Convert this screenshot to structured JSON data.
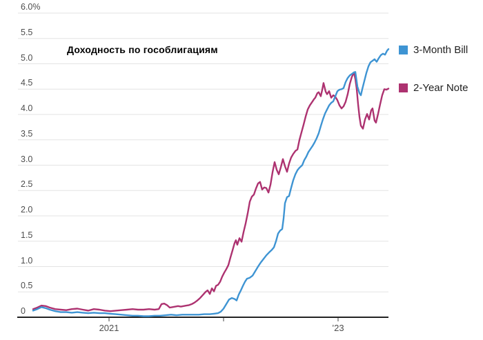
{
  "chart_data": {
    "type": "line",
    "title": "Доходность по гособлигациям",
    "grid": true,
    "legend_position": "right",
    "colors": {
      "background": "#ffffff",
      "grid": "#e3e3e3",
      "axis": "#222222",
      "tick": "#444444",
      "axis_label": "#4d4d4d",
      "legend_text": "#222222",
      "title": "#000000"
    },
    "y_axis": {
      "min": 0,
      "max": 6.0,
      "tick_step": 0.5,
      "ticks": [
        {
          "v": 6.0,
          "label": "6.0%"
        },
        {
          "v": 5.5,
          "label": "5.5"
        },
        {
          "v": 5.0,
          "label": "5.0"
        },
        {
          "v": 4.5,
          "label": "4.5"
        },
        {
          "v": 4.0,
          "label": "4.0"
        },
        {
          "v": 3.5,
          "label": "3.5"
        },
        {
          "v": 3.0,
          "label": "3.0"
        },
        {
          "v": 2.5,
          "label": "2.5"
        },
        {
          "v": 2.0,
          "label": "2.0"
        },
        {
          "v": 1.5,
          "label": "1.5"
        },
        {
          "v": 1.0,
          "label": "1.0"
        },
        {
          "v": 0.5,
          "label": "0.5"
        },
        {
          "v": 0,
          "label": "0"
        }
      ]
    },
    "x_axis": {
      "min": 2020.337,
      "max": 2023.44,
      "ticks": [
        {
          "t": 2021,
          "label": "2021"
        },
        {
          "t": 2022,
          "label": ""
        },
        {
          "t": 2023,
          "label": "’23"
        }
      ]
    },
    "series": [
      {
        "name": "3-Month Bill",
        "color": "#3e94d3",
        "points": [
          [
            2020.337,
            0.13
          ],
          [
            2020.373,
            0.16
          ],
          [
            2020.41,
            0.2
          ],
          [
            2020.446,
            0.18
          ],
          [
            2020.482,
            0.15
          ],
          [
            2020.53,
            0.12
          ],
          [
            2020.578,
            0.1
          ],
          [
            2020.627,
            0.1
          ],
          [
            2020.675,
            0.09
          ],
          [
            2020.723,
            0.1
          ],
          [
            2020.771,
            0.09
          ],
          [
            2020.819,
            0.08
          ],
          [
            2020.867,
            0.09
          ],
          [
            2020.916,
            0.08
          ],
          [
            2020.964,
            0.08
          ],
          [
            2021.012,
            0.07
          ],
          [
            2021.06,
            0.06
          ],
          [
            2021.108,
            0.05
          ],
          [
            2021.157,
            0.04
          ],
          [
            2021.205,
            0.03
          ],
          [
            2021.253,
            0.03
          ],
          [
            2021.301,
            0.02
          ],
          [
            2021.349,
            0.02
          ],
          [
            2021.398,
            0.03
          ],
          [
            2021.446,
            0.03
          ],
          [
            2021.494,
            0.04
          ],
          [
            2021.542,
            0.05
          ],
          [
            2021.59,
            0.04
          ],
          [
            2021.639,
            0.05
          ],
          [
            2021.687,
            0.05
          ],
          [
            2021.735,
            0.05
          ],
          [
            2021.783,
            0.05
          ],
          [
            2021.831,
            0.06
          ],
          [
            2021.88,
            0.06
          ],
          [
            2021.916,
            0.07
          ],
          [
            2021.952,
            0.08
          ],
          [
            2021.976,
            0.11
          ],
          [
            2022.0,
            0.17
          ],
          [
            2022.024,
            0.26
          ],
          [
            2022.048,
            0.35
          ],
          [
            2022.072,
            0.38
          ],
          [
            2022.096,
            0.36
          ],
          [
            2022.114,
            0.33
          ],
          [
            2022.133,
            0.45
          ],
          [
            2022.151,
            0.53
          ],
          [
            2022.169,
            0.62
          ],
          [
            2022.187,
            0.7
          ],
          [
            2022.205,
            0.76
          ],
          [
            2022.229,
            0.78
          ],
          [
            2022.253,
            0.82
          ],
          [
            2022.277,
            0.91
          ],
          [
            2022.301,
            1.0
          ],
          [
            2022.325,
            1.08
          ],
          [
            2022.349,
            1.15
          ],
          [
            2022.373,
            1.22
          ],
          [
            2022.398,
            1.28
          ],
          [
            2022.422,
            1.33
          ],
          [
            2022.44,
            1.38
          ],
          [
            2022.458,
            1.5
          ],
          [
            2022.476,
            1.65
          ],
          [
            2022.494,
            1.71
          ],
          [
            2022.512,
            1.74
          ],
          [
            2022.524,
            1.95
          ],
          [
            2022.536,
            2.25
          ],
          [
            2022.554,
            2.37
          ],
          [
            2022.572,
            2.39
          ],
          [
            2022.59,
            2.55
          ],
          [
            2022.608,
            2.7
          ],
          [
            2022.627,
            2.82
          ],
          [
            2022.645,
            2.9
          ],
          [
            2022.663,
            2.95
          ],
          [
            2022.687,
            3.0
          ],
          [
            2022.705,
            3.1
          ],
          [
            2022.723,
            3.17
          ],
          [
            2022.741,
            3.26
          ],
          [
            2022.759,
            3.32
          ],
          [
            2022.777,
            3.38
          ],
          [
            2022.795,
            3.45
          ],
          [
            2022.813,
            3.53
          ],
          [
            2022.831,
            3.63
          ],
          [
            2022.849,
            3.77
          ],
          [
            2022.867,
            3.9
          ],
          [
            2022.886,
            4.02
          ],
          [
            2022.904,
            4.1
          ],
          [
            2022.922,
            4.18
          ],
          [
            2022.94,
            4.23
          ],
          [
            2022.958,
            4.26
          ],
          [
            2022.976,
            4.36
          ],
          [
            2022.994,
            4.46
          ],
          [
            2023.012,
            4.49
          ],
          [
            2023.03,
            4.5
          ],
          [
            2023.048,
            4.52
          ],
          [
            2023.066,
            4.64
          ],
          [
            2023.084,
            4.72
          ],
          [
            2023.102,
            4.77
          ],
          [
            2023.12,
            4.8
          ],
          [
            2023.139,
            4.83
          ],
          [
            2023.151,
            4.84
          ],
          [
            2023.169,
            4.55
          ],
          [
            2023.187,
            4.42
          ],
          [
            2023.199,
            4.38
          ],
          [
            2023.211,
            4.5
          ],
          [
            2023.229,
            4.66
          ],
          [
            2023.247,
            4.82
          ],
          [
            2023.265,
            4.95
          ],
          [
            2023.283,
            5.03
          ],
          [
            2023.301,
            5.06
          ],
          [
            2023.319,
            5.09
          ],
          [
            2023.337,
            5.04
          ],
          [
            2023.355,
            5.11
          ],
          [
            2023.373,
            5.17
          ],
          [
            2023.392,
            5.2
          ],
          [
            2023.41,
            5.18
          ],
          [
            2023.428,
            5.26
          ],
          [
            2023.44,
            5.29
          ]
        ]
      },
      {
        "name": "2-Year Note",
        "color": "#ad3270",
        "points": [
          [
            2020.337,
            0.16
          ],
          [
            2020.373,
            0.19
          ],
          [
            2020.41,
            0.23
          ],
          [
            2020.446,
            0.22
          ],
          [
            2020.482,
            0.19
          ],
          [
            2020.53,
            0.16
          ],
          [
            2020.578,
            0.15
          ],
          [
            2020.627,
            0.14
          ],
          [
            2020.675,
            0.16
          ],
          [
            2020.723,
            0.17
          ],
          [
            2020.771,
            0.15
          ],
          [
            2020.819,
            0.13
          ],
          [
            2020.867,
            0.16
          ],
          [
            2020.916,
            0.15
          ],
          [
            2020.964,
            0.13
          ],
          [
            2021.012,
            0.12
          ],
          [
            2021.06,
            0.13
          ],
          [
            2021.108,
            0.14
          ],
          [
            2021.157,
            0.15
          ],
          [
            2021.205,
            0.16
          ],
          [
            2021.253,
            0.15
          ],
          [
            2021.301,
            0.15
          ],
          [
            2021.349,
            0.16
          ],
          [
            2021.398,
            0.15
          ],
          [
            2021.434,
            0.16
          ],
          [
            2021.458,
            0.26
          ],
          [
            2021.482,
            0.27
          ],
          [
            2021.506,
            0.24
          ],
          [
            2021.53,
            0.19
          ],
          [
            2021.554,
            0.2
          ],
          [
            2021.578,
            0.21
          ],
          [
            2021.602,
            0.22
          ],
          [
            2021.627,
            0.21
          ],
          [
            2021.651,
            0.22
          ],
          [
            2021.675,
            0.23
          ],
          [
            2021.699,
            0.24
          ],
          [
            2021.723,
            0.26
          ],
          [
            2021.747,
            0.29
          ],
          [
            2021.771,
            0.33
          ],
          [
            2021.795,
            0.38
          ],
          [
            2021.819,
            0.44
          ],
          [
            2021.843,
            0.5
          ],
          [
            2021.861,
            0.53
          ],
          [
            2021.88,
            0.46
          ],
          [
            2021.898,
            0.57
          ],
          [
            2021.916,
            0.51
          ],
          [
            2021.934,
            0.62
          ],
          [
            2021.952,
            0.64
          ],
          [
            2021.97,
            0.7
          ],
          [
            2021.988,
            0.8
          ],
          [
            2022.006,
            0.88
          ],
          [
            2022.024,
            0.95
          ],
          [
            2022.042,
            1.03
          ],
          [
            2022.06,
            1.18
          ],
          [
            2022.078,
            1.32
          ],
          [
            2022.096,
            1.46
          ],
          [
            2022.108,
            1.52
          ],
          [
            2022.12,
            1.43
          ],
          [
            2022.139,
            1.56
          ],
          [
            2022.157,
            1.49
          ],
          [
            2022.175,
            1.68
          ],
          [
            2022.193,
            1.85
          ],
          [
            2022.211,
            2.05
          ],
          [
            2022.229,
            2.28
          ],
          [
            2022.247,
            2.38
          ],
          [
            2022.265,
            2.42
          ],
          [
            2022.283,
            2.54
          ],
          [
            2022.301,
            2.64
          ],
          [
            2022.319,
            2.67
          ],
          [
            2022.337,
            2.52
          ],
          [
            2022.355,
            2.56
          ],
          [
            2022.373,
            2.55
          ],
          [
            2022.392,
            2.46
          ],
          [
            2022.41,
            2.62
          ],
          [
            2022.428,
            2.86
          ],
          [
            2022.446,
            3.06
          ],
          [
            2022.464,
            2.91
          ],
          [
            2022.482,
            2.82
          ],
          [
            2022.5,
            2.96
          ],
          [
            2022.518,
            3.12
          ],
          [
            2022.536,
            2.98
          ],
          [
            2022.554,
            2.87
          ],
          [
            2022.572,
            3.03
          ],
          [
            2022.59,
            3.15
          ],
          [
            2022.608,
            3.22
          ],
          [
            2022.627,
            3.28
          ],
          [
            2022.645,
            3.31
          ],
          [
            2022.663,
            3.5
          ],
          [
            2022.681,
            3.65
          ],
          [
            2022.699,
            3.8
          ],
          [
            2022.717,
            3.96
          ],
          [
            2022.735,
            4.1
          ],
          [
            2022.753,
            4.18
          ],
          [
            2022.771,
            4.24
          ],
          [
            2022.789,
            4.3
          ],
          [
            2022.801,
            4.33
          ],
          [
            2022.819,
            4.42
          ],
          [
            2022.831,
            4.44
          ],
          [
            2022.849,
            4.36
          ],
          [
            2022.861,
            4.48
          ],
          [
            2022.873,
            4.62
          ],
          [
            2022.892,
            4.45
          ],
          [
            2022.904,
            4.4
          ],
          [
            2022.922,
            4.46
          ],
          [
            2022.94,
            4.33
          ],
          [
            2022.958,
            4.38
          ],
          [
            2022.976,
            4.35
          ],
          [
            2022.994,
            4.28
          ],
          [
            2023.012,
            4.18
          ],
          [
            2023.03,
            4.12
          ],
          [
            2023.048,
            4.16
          ],
          [
            2023.066,
            4.25
          ],
          [
            2023.084,
            4.4
          ],
          [
            2023.102,
            4.6
          ],
          [
            2023.12,
            4.74
          ],
          [
            2023.139,
            4.83
          ],
          [
            2023.151,
            4.7
          ],
          [
            2023.163,
            4.5
          ],
          [
            2023.175,
            4.2
          ],
          [
            2023.187,
            3.95
          ],
          [
            2023.199,
            3.78
          ],
          [
            2023.217,
            3.72
          ],
          [
            2023.235,
            3.9
          ],
          [
            2023.253,
            4.01
          ],
          [
            2023.271,
            3.9
          ],
          [
            2023.289,
            4.08
          ],
          [
            2023.301,
            4.12
          ],
          [
            2023.319,
            3.88
          ],
          [
            2023.331,
            3.84
          ],
          [
            2023.349,
            4.01
          ],
          [
            2023.367,
            4.2
          ],
          [
            2023.385,
            4.38
          ],
          [
            2023.404,
            4.5
          ],
          [
            2023.422,
            4.49
          ],
          [
            2023.44,
            4.51
          ]
        ]
      }
    ]
  }
}
